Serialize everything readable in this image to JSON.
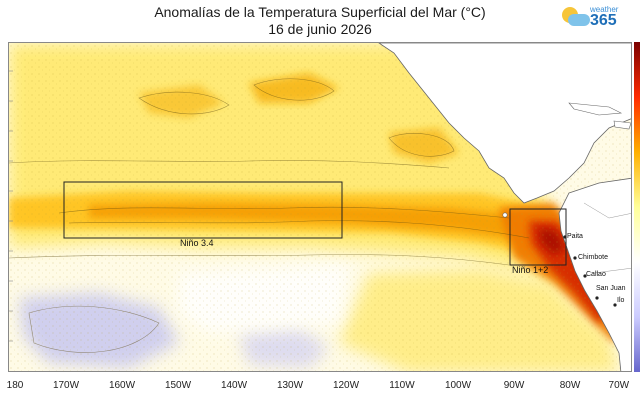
{
  "title": "Anomalías de la Temperatura Superficial del Mar (°C)",
  "date": "16 de junio 2026",
  "brand": {
    "word": "weather",
    "number": "365"
  },
  "regions": [
    {
      "key": "nino34",
      "label": "Niño 3.4"
    },
    {
      "key": "nino12",
      "label": "Niño 1+2"
    }
  ],
  "cities": [
    "Paita",
    "Chimbote",
    "Callao",
    "San Juan",
    "Ilo"
  ],
  "x_axis_labels": [
    "180",
    "170W",
    "160W",
    "150W",
    "140W",
    "130W",
    "120W",
    "110W",
    "100W",
    "90W",
    "80W",
    "70W"
  ],
  "colors": {
    "warm_strong": "#c61a00",
    "warm": "#f08a00",
    "mild": "#ffe44d",
    "neutral": "#ffffff",
    "cool": "#c8c8f0",
    "land": "#ffffff"
  }
}
